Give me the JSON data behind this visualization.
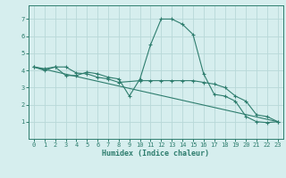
{
  "xlabel": "Humidex (Indice chaleur)",
  "background_color": "#d6eeee",
  "grid_color": "#b8d8d8",
  "line_color": "#2e7d6e",
  "xlim": [
    -0.5,
    23.5
  ],
  "ylim": [
    0,
    7.8
  ],
  "xticks": [
    0,
    1,
    2,
    3,
    4,
    5,
    6,
    7,
    8,
    9,
    10,
    11,
    12,
    13,
    14,
    15,
    16,
    17,
    18,
    19,
    20,
    21,
    22,
    23
  ],
  "yticks": [
    1,
    2,
    3,
    4,
    5,
    6,
    7
  ],
  "series": [
    {
      "x": [
        0,
        1,
        2,
        3,
        4,
        5,
        6,
        7,
        8,
        9,
        10,
        11,
        12,
        13,
        14,
        15,
        16,
        17,
        18,
        19,
        20,
        21,
        22,
        23
      ],
      "y": [
        4.2,
        4.1,
        4.2,
        3.7,
        3.7,
        3.9,
        3.8,
        3.6,
        3.5,
        2.5,
        3.5,
        5.5,
        7.0,
        7.0,
        6.7,
        6.1,
        3.8,
        2.6,
        2.5,
        2.2,
        1.3,
        1.0,
        0.95,
        1.0
      ],
      "marker": true
    },
    {
      "x": [
        0,
        1,
        2,
        3,
        4,
        5,
        6,
        7,
        8,
        10,
        11,
        12,
        13,
        14,
        15,
        16,
        17,
        18,
        19,
        20,
        21,
        22,
        23
      ],
      "y": [
        4.2,
        4.0,
        4.2,
        4.2,
        3.85,
        3.8,
        3.6,
        3.5,
        3.3,
        3.4,
        3.4,
        3.4,
        3.4,
        3.4,
        3.4,
        3.3,
        3.2,
        3.0,
        2.5,
        2.2,
        1.4,
        1.3,
        1.0
      ],
      "marker": true
    },
    {
      "x": [
        0,
        23
      ],
      "y": [
        4.2,
        1.0
      ],
      "marker": false
    }
  ]
}
